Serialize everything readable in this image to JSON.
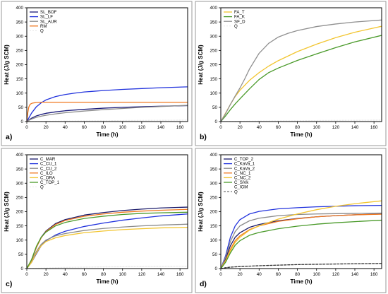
{
  "chart_data": [
    {
      "type": "line",
      "panel_label": "a)",
      "xlabel": "Time (h)",
      "ylabel": "Heat (J/g SCM)",
      "xlim": [
        0,
        168
      ],
      "ylim": [
        0,
        400
      ],
      "xticks": [
        0,
        20,
        40,
        60,
        80,
        100,
        120,
        140,
        160
      ],
      "yticks": [
        0,
        50,
        100,
        150,
        200,
        250,
        300,
        350,
        400
      ],
      "legend_position": "top-left",
      "series": [
        {
          "name": "SL_BOF",
          "color": "#1a1a7a",
          "dash": "",
          "x": [
            0,
            2,
            5,
            10,
            15,
            20,
            30,
            40,
            60,
            80,
            100,
            120,
            140,
            168
          ],
          "y": [
            0,
            5,
            12,
            20,
            25,
            29,
            34,
            38,
            43,
            47,
            50,
            52,
            54,
            56
          ]
        },
        {
          "name": "SL_LF",
          "color": "#2233dd",
          "dash": "",
          "x": [
            0,
            2,
            5,
            10,
            15,
            20,
            30,
            40,
            50,
            60,
            80,
            100,
            120,
            140,
            168
          ],
          "y": [
            0,
            12,
            30,
            52,
            66,
            76,
            88,
            95,
            100,
            104,
            109,
            113,
            116,
            119,
            122
          ]
        },
        {
          "name": "SL_AUR",
          "color": "#8a8a8a",
          "dash": "",
          "x": [
            0,
            2,
            5,
            10,
            15,
            20,
            30,
            40,
            60,
            80,
            100,
            120,
            140,
            168
          ],
          "y": [
            0,
            4,
            9,
            15,
            19,
            22,
            27,
            31,
            37,
            42,
            46,
            50,
            53,
            57
          ]
        },
        {
          "name": "RM",
          "color": "#f07820",
          "dash": "",
          "x": [
            0,
            1,
            2,
            3,
            4,
            6,
            8,
            10,
            15,
            20,
            40,
            60,
            80,
            100,
            120,
            140,
            168
          ],
          "y": [
            0,
            30,
            50,
            58,
            62,
            65,
            66,
            67,
            68,
            68,
            68,
            68,
            68,
            68,
            68,
            68,
            68
          ]
        },
        {
          "name": "Q",
          "color": "#e8e8e8",
          "dash": "2,2",
          "x": [
            0,
            40,
            80,
            120,
            168
          ],
          "y": [
            0,
            2,
            3,
            4,
            5
          ]
        }
      ]
    },
    {
      "type": "line",
      "panel_label": "b)",
      "xlabel": "Time (h)",
      "ylabel": "Heat (J/g SCM)",
      "xlim": [
        0,
        168
      ],
      "ylim": [
        0,
        400
      ],
      "xticks": [
        0,
        20,
        40,
        60,
        80,
        100,
        120,
        140,
        160
      ],
      "yticks": [
        0,
        50,
        100,
        150,
        200,
        250,
        300,
        350,
        400
      ],
      "legend_position": "top-left",
      "series": [
        {
          "name": "FA_T",
          "color": "#f2c530",
          "dash": "",
          "x": [
            0,
            5,
            10,
            15,
            20,
            30,
            40,
            50,
            60,
            80,
            100,
            120,
            140,
            168
          ],
          "y": [
            0,
            30,
            60,
            88,
            110,
            145,
            172,
            195,
            214,
            246,
            272,
            295,
            314,
            335
          ]
        },
        {
          "name": "FA_K",
          "color": "#4a9a2a",
          "dash": "",
          "x": [
            0,
            5,
            10,
            15,
            20,
            30,
            40,
            50,
            60,
            80,
            100,
            120,
            140,
            168
          ],
          "y": [
            0,
            20,
            42,
            62,
            80,
            115,
            148,
            172,
            188,
            215,
            238,
            260,
            280,
            303
          ]
        },
        {
          "name": "SF_D",
          "color": "#909090",
          "dash": "",
          "x": [
            0,
            5,
            10,
            15,
            20,
            25,
            30,
            40,
            50,
            60,
            70,
            80,
            100,
            120,
            140,
            168
          ],
          "y": [
            0,
            28,
            60,
            90,
            118,
            150,
            185,
            240,
            275,
            297,
            310,
            320,
            334,
            343,
            350,
            357
          ]
        },
        {
          "name": "Q",
          "color": "#e8e8e8",
          "dash": "2,2",
          "x": [
            0,
            40,
            80,
            120,
            168
          ],
          "y": [
            0,
            2,
            3,
            4,
            5
          ]
        }
      ]
    },
    {
      "type": "line",
      "panel_label": "c)",
      "xlabel": "Time (h)",
      "ylabel": "Heat (J/g SCM)",
      "xlim": [
        0,
        168
      ],
      "ylim": [
        0,
        400
      ],
      "xticks": [
        0,
        20,
        40,
        60,
        80,
        100,
        120,
        140,
        160
      ],
      "yticks": [
        0,
        50,
        100,
        150,
        200,
        250,
        300,
        350,
        400
      ],
      "legend_position": "top-left",
      "series": [
        {
          "name": "C_MAR",
          "color": "#1a1a6a",
          "dash": "",
          "x": [
            0,
            5,
            10,
            15,
            20,
            30,
            40,
            60,
            80,
            100,
            120,
            140,
            168
          ],
          "y": [
            0,
            30,
            75,
            110,
            132,
            158,
            172,
            188,
            197,
            204,
            209,
            213,
            216
          ]
        },
        {
          "name": "C_CU_1",
          "color": "#2233dd",
          "dash": "",
          "x": [
            0,
            5,
            10,
            15,
            20,
            30,
            40,
            60,
            80,
            100,
            120,
            140,
            168
          ],
          "y": [
            0,
            22,
            52,
            80,
            98,
            118,
            131,
            148,
            160,
            170,
            178,
            185,
            192
          ]
        },
        {
          "name": "C_CU_2",
          "color": "#8a8a8a",
          "dash": "",
          "x": [
            0,
            5,
            10,
            15,
            20,
            30,
            40,
            60,
            80,
            100,
            120,
            140,
            168
          ],
          "y": [
            0,
            25,
            60,
            85,
            100,
            115,
            123,
            134,
            141,
            146,
            150,
            153,
            156
          ]
        },
        {
          "name": "C_ILO",
          "color": "#f07820",
          "dash": "",
          "x": [
            0,
            5,
            10,
            15,
            20,
            30,
            40,
            60,
            80,
            100,
            120,
            140,
            168
          ],
          "y": [
            0,
            30,
            74,
            108,
            130,
            155,
            169,
            184,
            192,
            198,
            202,
            205,
            208
          ]
        },
        {
          "name": "C_ORA",
          "color": "#f2c530",
          "dash": "",
          "x": [
            0,
            5,
            10,
            15,
            20,
            30,
            40,
            60,
            80,
            100,
            120,
            140,
            168
          ],
          "y": [
            0,
            22,
            55,
            80,
            95,
            108,
            116,
            126,
            132,
            137,
            140,
            143,
            145
          ]
        },
        {
          "name": "C_TOP_1",
          "color": "#4a9a2a",
          "dash": "",
          "x": [
            0,
            5,
            10,
            15,
            20,
            30,
            40,
            60,
            80,
            100,
            120,
            140,
            168
          ],
          "y": [
            0,
            32,
            78,
            110,
            128,
            150,
            162,
            176,
            184,
            190,
            194,
            196,
            198
          ]
        },
        {
          "name": "Q",
          "color": "#e8e8e8",
          "dash": "2,2",
          "x": [
            0,
            40,
            80,
            120,
            168
          ],
          "y": [
            0,
            4,
            6,
            7,
            8
          ]
        }
      ]
    },
    {
      "type": "line",
      "panel_label": "d)",
      "xlabel": "Time (h)",
      "ylabel": "Heat (J/g SCM)",
      "xlim": [
        0,
        168
      ],
      "ylim": [
        0,
        400
      ],
      "xticks": [
        0,
        20,
        40,
        60,
        80,
        100,
        120,
        140,
        160
      ],
      "yticks": [
        0,
        50,
        100,
        150,
        200,
        250,
        300,
        350,
        400
      ],
      "legend_position": "top-left",
      "series": [
        {
          "name": "C_TOP_2",
          "color": "#1a1a6a",
          "dash": "",
          "x": [
            0,
            5,
            10,
            15,
            20,
            30,
            40,
            60,
            80,
            100,
            120,
            140,
            168
          ],
          "y": [
            0,
            35,
            80,
            110,
            126,
            145,
            155,
            168,
            176,
            182,
            186,
            189,
            192
          ]
        },
        {
          "name": "C_KaVa_1",
          "color": "#2233dd",
          "dash": "",
          "x": [
            0,
            5,
            10,
            15,
            20,
            30,
            40,
            60,
            80,
            100,
            120,
            140,
            168
          ],
          "y": [
            0,
            45,
            110,
            150,
            172,
            192,
            201,
            210,
            214,
            217,
            219,
            221,
            222
          ]
        },
        {
          "name": "C_KaVa_2",
          "color": "#8a8a8a",
          "dash": "",
          "x": [
            0,
            5,
            10,
            15,
            20,
            30,
            40,
            60,
            80,
            100,
            120,
            140,
            168
          ],
          "y": [
            0,
            40,
            95,
            130,
            150,
            168,
            177,
            186,
            190,
            192,
            193,
            194,
            195
          ]
        },
        {
          "name": "C_NC_1",
          "color": "#f07820",
          "dash": "",
          "x": [
            0,
            5,
            10,
            15,
            20,
            30,
            40,
            60,
            80,
            100,
            120,
            140,
            168
          ],
          "y": [
            0,
            28,
            68,
            98,
            115,
            137,
            150,
            166,
            175,
            182,
            186,
            189,
            191
          ]
        },
        {
          "name": "C_NC_2",
          "color": "#f2c530",
          "dash": "",
          "x": [
            0,
            5,
            10,
            15,
            20,
            30,
            40,
            60,
            80,
            100,
            120,
            140,
            168
          ],
          "y": [
            0,
            25,
            62,
            92,
            110,
            135,
            150,
            174,
            192,
            207,
            219,
            228,
            238
          ]
        },
        {
          "name": "C_SiVk",
          "color": "#4a9a2a",
          "dash": "",
          "x": [
            0,
            5,
            10,
            15,
            20,
            30,
            40,
            60,
            80,
            100,
            120,
            140,
            168
          ],
          "y": [
            0,
            22,
            55,
            82,
            98,
            117,
            127,
            140,
            149,
            156,
            161,
            165,
            170
          ]
        },
        {
          "name": "C_IGM",
          "color": "#ffffff",
          "dash": "",
          "x": [
            0,
            168
          ],
          "y": [
            0,
            0
          ]
        },
        {
          "name": "Q",
          "color": "#333333",
          "dash": "3,2",
          "x": [
            0,
            5,
            10,
            20,
            40,
            60,
            80,
            100,
            120,
            140,
            168
          ],
          "y": [
            0,
            3,
            5,
            7,
            10,
            12,
            14,
            15,
            16,
            17,
            18
          ]
        }
      ]
    }
  ]
}
